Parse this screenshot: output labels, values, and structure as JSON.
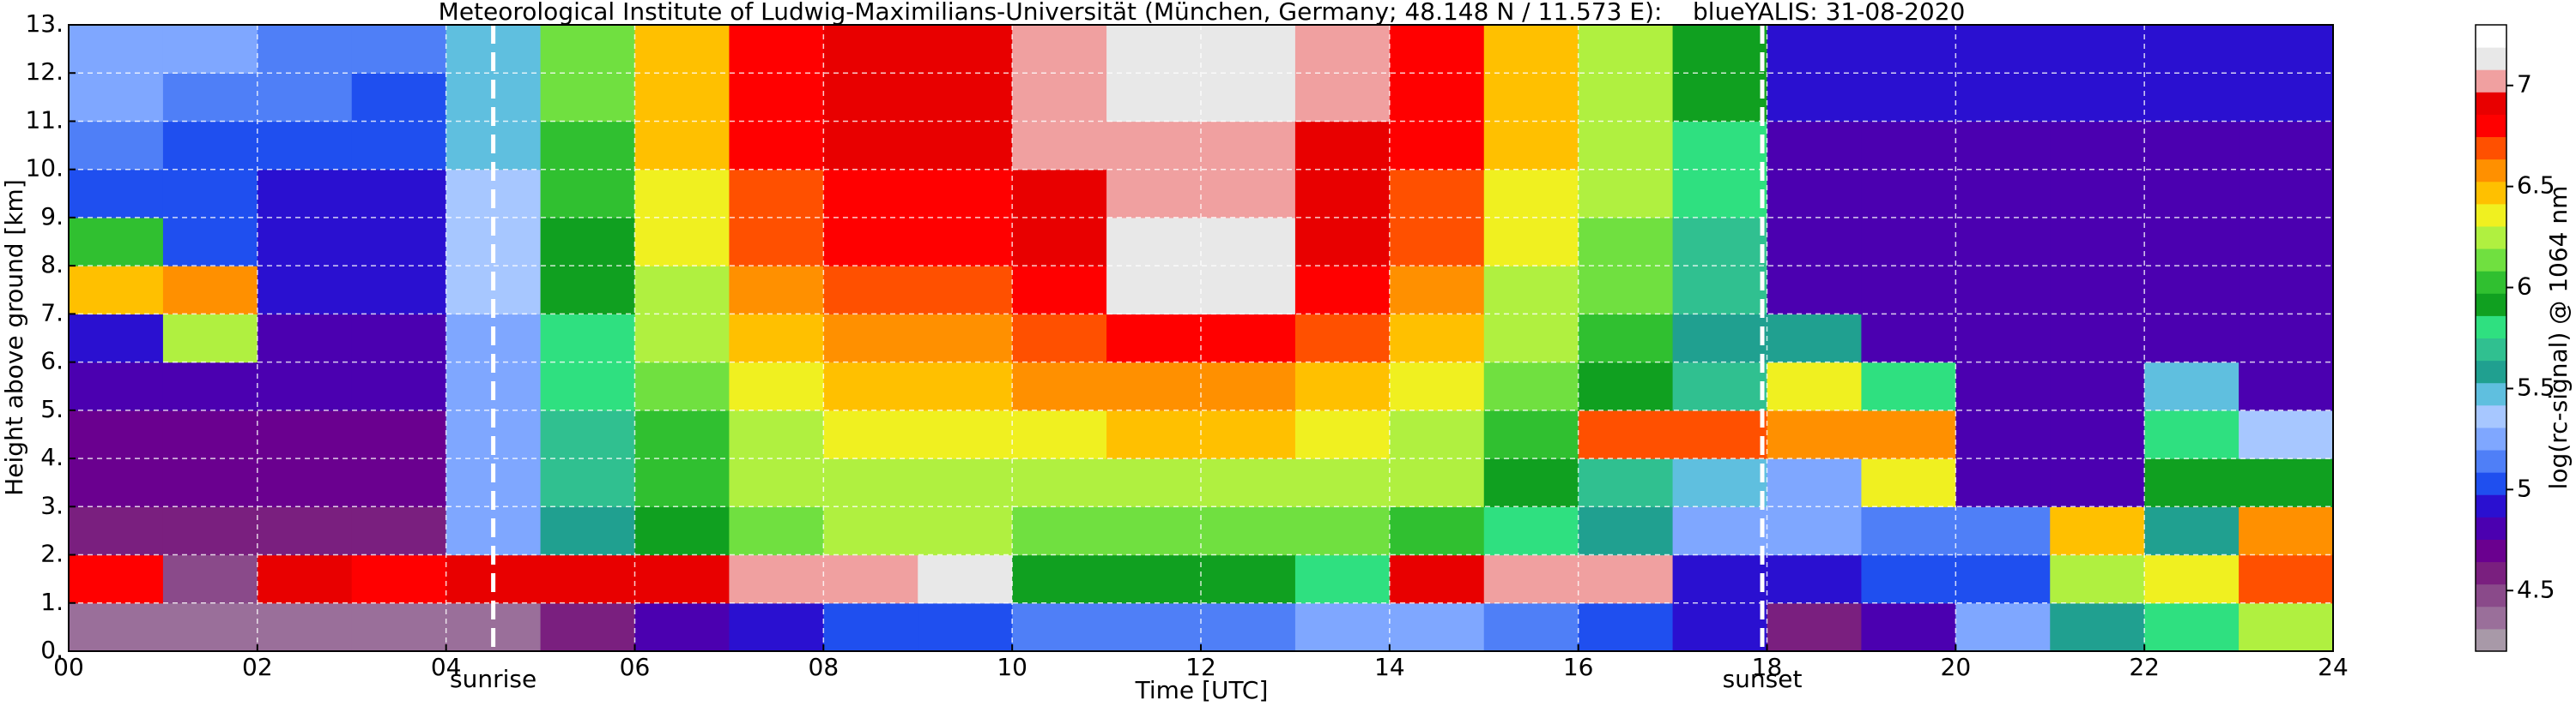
{
  "chart_data": {
    "type": "heatmap",
    "title": "Meteorological Institute of Ludwig-Maximilians-Universität (München, Germany; 48.148 N / 11.573 E):    blueYALIS: 31-08-2020",
    "x_label": "Time [UTC]",
    "y_label": "Height above ground [km]",
    "xlim": [
      0,
      24
    ],
    "ylim": [
      0,
      13
    ],
    "xticks": [
      {
        "value": 0,
        "label": "00"
      },
      {
        "value": 2,
        "label": "02"
      },
      {
        "value": 4,
        "label": "04"
      },
      {
        "value": 6,
        "label": "06"
      },
      {
        "value": 8,
        "label": "08"
      },
      {
        "value": 10,
        "label": "10"
      },
      {
        "value": 12,
        "label": "12"
      },
      {
        "value": 14,
        "label": "14"
      },
      {
        "value": 16,
        "label": "16"
      },
      {
        "value": 18,
        "label": "18"
      },
      {
        "value": 20,
        "label": "20"
      },
      {
        "value": 22,
        "label": "22"
      },
      {
        "value": 24,
        "label": "24"
      }
    ],
    "yticks": [
      {
        "value": 0,
        "label": "0."
      },
      {
        "value": 1,
        "label": "1."
      },
      {
        "value": 2,
        "label": "2."
      },
      {
        "value": 3,
        "label": "3."
      },
      {
        "value": 4,
        "label": "4."
      },
      {
        "value": 5,
        "label": "5."
      },
      {
        "value": 6,
        "label": "6."
      },
      {
        "value": 7,
        "label": "7."
      },
      {
        "value": 8,
        "label": "8."
      },
      {
        "value": 9,
        "label": "9."
      },
      {
        "value": 10,
        "label": "10."
      },
      {
        "value": 11,
        "label": "11."
      },
      {
        "value": 12,
        "label": "12."
      },
      {
        "value": 13,
        "label": "13."
      }
    ],
    "grid": true,
    "xbins": [
      0,
      1,
      2,
      3,
      4,
      5,
      6,
      7,
      8,
      9,
      10,
      11,
      12,
      13,
      14,
      15,
      16,
      17,
      18,
      19,
      20,
      21,
      22,
      23,
      24
    ],
    "ybins": [
      0,
      1,
      2,
      3,
      4,
      5,
      6,
      7,
      8,
      9,
      10,
      11,
      12,
      13
    ],
    "z": [
      [
        4.4,
        4.4,
        4.4,
        4.4,
        4.4,
        4.6,
        4.8,
        4.9,
        5.0,
        5.0,
        5.1,
        5.1,
        5.1,
        5.2,
        5.2,
        5.1,
        5.0,
        4.9,
        4.6,
        4.8,
        5.3,
        5.6,
        5.8,
        6.2
      ],
      [
        6.8,
        4.5,
        6.9,
        6.8,
        6.9,
        6.9,
        6.9,
        7.0,
        7.0,
        7.1,
        5.9,
        5.9,
        5.9,
        5.8,
        6.9,
        7.0,
        7.0,
        4.9,
        4.9,
        5.0,
        5.0,
        6.3,
        6.4,
        6.7
      ],
      [
        4.6,
        4.6,
        4.6,
        4.6,
        5.2,
        5.6,
        5.9,
        6.1,
        6.2,
        6.2,
        6.1,
        6.1,
        6.1,
        6.1,
        6.0,
        5.8,
        5.6,
        5.3,
        5.3,
        5.1,
        5.1,
        6.5,
        5.6,
        6.6
      ],
      [
        4.7,
        4.7,
        4.7,
        4.7,
        5.2,
        5.7,
        6.0,
        6.2,
        6.3,
        6.3,
        6.3,
        6.3,
        6.3,
        6.3,
        6.2,
        5.9,
        5.7,
        5.5,
        5.2,
        6.4,
        4.8,
        4.8,
        5.9,
        5.9
      ],
      [
        4.7,
        4.7,
        4.7,
        4.7,
        5.3,
        5.7,
        6.0,
        6.3,
        6.4,
        6.4,
        6.4,
        6.5,
        6.5,
        6.4,
        6.3,
        6.0,
        6.7,
        6.7,
        6.6,
        6.6,
        4.8,
        4.8,
        5.8,
        5.4
      ],
      [
        4.8,
        4.8,
        4.8,
        4.8,
        5.3,
        5.8,
        6.1,
        6.4,
        6.5,
        6.5,
        6.6,
        6.6,
        6.6,
        6.5,
        6.4,
        6.1,
        5.9,
        5.7,
        6.4,
        5.8,
        4.8,
        4.8,
        5.5,
        4.8
      ],
      [
        4.9,
        6.3,
        4.8,
        4.8,
        5.3,
        5.8,
        6.2,
        6.5,
        6.6,
        6.6,
        6.7,
        6.8,
        6.8,
        6.7,
        6.5,
        6.2,
        6.0,
        5.6,
        5.6,
        4.8,
        4.8,
        4.8,
        4.8,
        4.8
      ],
      [
        6.5,
        6.6,
        4.9,
        4.9,
        5.4,
        5.9,
        6.3,
        6.6,
        6.7,
        6.7,
        6.8,
        7.1,
        7.1,
        6.8,
        6.6,
        6.3,
        6.1,
        5.7,
        4.8,
        4.8,
        4.8,
        4.8,
        4.8,
        4.8
      ],
      [
        6.0,
        5.0,
        4.9,
        4.9,
        5.4,
        5.9,
        6.4,
        6.7,
        6.8,
        6.8,
        6.9,
        7.1,
        7.1,
        6.9,
        6.7,
        6.4,
        6.1,
        5.7,
        4.8,
        4.8,
        4.8,
        4.8,
        4.8,
        4.8
      ],
      [
        5.0,
        5.0,
        4.9,
        4.9,
        5.4,
        6.0,
        6.4,
        6.7,
        6.8,
        6.8,
        6.9,
        7.0,
        7.0,
        6.9,
        6.7,
        6.4,
        6.2,
        5.8,
        4.8,
        4.8,
        4.8,
        4.8,
        4.8,
        4.8
      ],
      [
        5.1,
        5.0,
        5.0,
        5.0,
        5.5,
        6.0,
        6.5,
        6.8,
        6.9,
        6.9,
        7.0,
        7.0,
        7.0,
        6.9,
        6.8,
        6.5,
        6.2,
        5.8,
        4.8,
        4.8,
        4.8,
        4.8,
        4.8,
        4.8
      ],
      [
        5.2,
        5.1,
        5.1,
        5.0,
        5.5,
        6.1,
        6.5,
        6.8,
        6.9,
        6.9,
        7.0,
        7.1,
        7.1,
        7.0,
        6.8,
        6.5,
        6.3,
        5.9,
        4.9,
        4.9,
        4.9,
        4.9,
        4.9,
        4.9
      ],
      [
        5.2,
        5.2,
        5.1,
        5.1,
        5.5,
        6.1,
        6.5,
        6.8,
        6.9,
        6.9,
        7.0,
        7.1,
        7.1,
        7.0,
        6.8,
        6.5,
        6.3,
        5.9,
        4.9,
        4.9,
        4.9,
        4.9,
        4.9,
        4.9
      ]
    ],
    "annotations": [
      {
        "text": "sunrise",
        "x": 4.5
      },
      {
        "text": "sunset",
        "x": 17.95
      }
    ],
    "colorbar": {
      "label": "log(rc-signal) @ 1064 nm",
      "lim": [
        4.2,
        7.3
      ],
      "ticks": [
        4.5,
        5.0,
        5.5,
        6.0,
        6.5,
        7.0
      ],
      "colors": [
        "#a899a8",
        "#9a6f9a",
        "#8a4a8a",
        "#7a1f7f",
        "#6a008f",
        "#4b00b0",
        "#2a10d0",
        "#1f4fef",
        "#4f7ff7",
        "#7fa7ff",
        "#a7c7ff",
        "#5fbfdf",
        "#20a090",
        "#30c090",
        "#2fe080",
        "#10a020",
        "#30c030",
        "#70e040",
        "#b0f040",
        "#f0f020",
        "#ffc000",
        "#ff9000",
        "#ff5000",
        "#ff0000",
        "#e80000",
        "#f0a0a0",
        "#e8e8e8",
        "#ffffff"
      ]
    }
  }
}
